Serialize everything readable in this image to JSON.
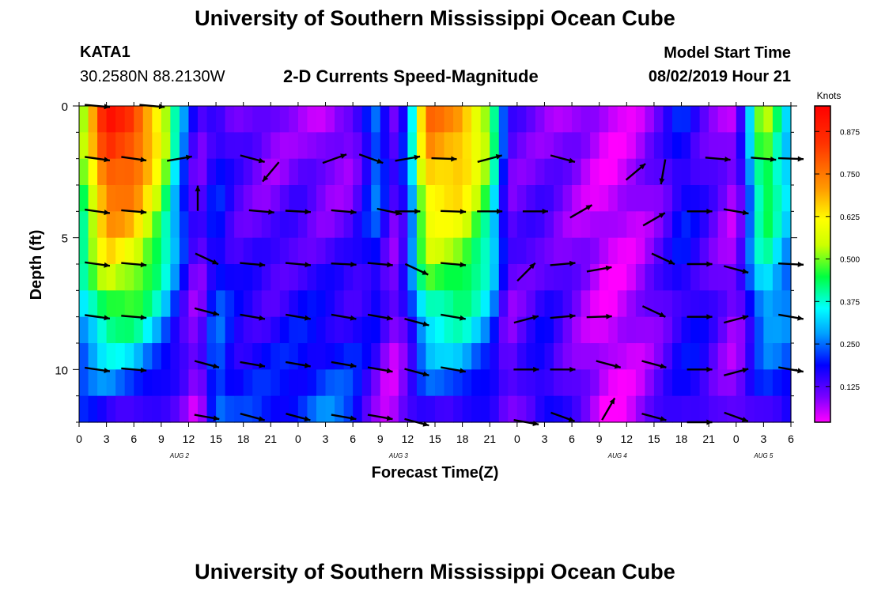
{
  "header": {
    "title": "University of Southern Mississippi Ocean Cube",
    "station_id": "KATA1",
    "coordinates": "30.2580N 88.2130W",
    "plot_title": "2-D Currents Speed-Magnitude",
    "model_start_label": "Model Start Time",
    "model_start_value": "08/02/2019 Hour 21"
  },
  "footer": {
    "title": "University of Southern Mississippi Ocean Cube"
  },
  "chart_data": {
    "type": "heatmap",
    "title": "2-D Currents Speed-Magnitude",
    "xlabel": "Forecast Time(Z)",
    "ylabel": "Depth (ft)",
    "x_tick_labels": [
      "0",
      "3",
      "6",
      "9",
      "12",
      "15",
      "18",
      "21",
      "0",
      "3",
      "6",
      "9",
      "12",
      "15",
      "18",
      "21",
      "0",
      "3",
      "6",
      "9",
      "12",
      "15",
      "18",
      "21",
      "0",
      "3",
      "6"
    ],
    "x_range_hours": [
      0,
      78
    ],
    "date_labels": [
      {
        "label": "AUG 2",
        "hour": 11
      },
      {
        "label": "AUG 3",
        "hour": 35
      },
      {
        "label": "AUG 4",
        "hour": 59
      },
      {
        "label": "AUG 5",
        "hour": 75
      }
    ],
    "y_ticks": [
      0,
      5,
      10
    ],
    "y_tick_labels": [
      "0",
      "5",
      "10"
    ],
    "ylim": [
      0,
      12
    ],
    "y_inverted": true,
    "colorbar": {
      "label": "Knots",
      "ticks": [
        0.125,
        0.25,
        0.375,
        0.5,
        0.625,
        0.75,
        0.875
      ],
      "tick_labels": [
        "0.125",
        "0.250",
        "0.375",
        "0.500",
        "0.625",
        "0.750",
        "0.875"
      ],
      "range": [
        0.02,
        0.95
      ]
    },
    "depths_ft": [
      0.5,
      1.5,
      2.5,
      3.5,
      4.5,
      5.5,
      6.5,
      7.5,
      8.5,
      9.5,
      10.5,
      11.5
    ],
    "speed_profile_by_time": [
      {
        "hour": 0,
        "surface": 0.45,
        "bottom": 0.18
      },
      {
        "hour": 3,
        "surface": 0.9,
        "bottom": 0.17
      },
      {
        "hour": 6,
        "surface": 0.85,
        "bottom": 0.16
      },
      {
        "hour": 9,
        "surface": 0.6,
        "bottom": 0.12
      },
      {
        "hour": 11,
        "surface": 0.3,
        "bottom": 0.1
      },
      {
        "hour": 13,
        "surface": 0.1,
        "bottom": 0.05
      },
      {
        "hour": 15,
        "surface": 0.18,
        "bottom": 0.28
      },
      {
        "hour": 17,
        "surface": 0.12,
        "bottom": 0.2
      },
      {
        "hour": 21,
        "surface": 0.08,
        "bottom": 0.2
      },
      {
        "hour": 24,
        "surface": 0.1,
        "bottom": 0.22
      },
      {
        "hour": 27,
        "surface": 0.06,
        "bottom": 0.25
      },
      {
        "hour": 30,
        "surface": 0.08,
        "bottom": 0.22
      },
      {
        "hour": 33,
        "surface": 0.3,
        "bottom": 0.08
      },
      {
        "hour": 34,
        "surface": 0.1,
        "bottom": 0.04
      },
      {
        "hour": 36,
        "surface": 0.22,
        "bottom": 0.1
      },
      {
        "hour": 38,
        "surface": 0.75,
        "bottom": 0.15
      },
      {
        "hour": 42,
        "surface": 0.72,
        "bottom": 0.18
      },
      {
        "hour": 45,
        "surface": 0.5,
        "bottom": 0.14
      },
      {
        "hour": 47,
        "surface": 0.12,
        "bottom": 0.08
      },
      {
        "hour": 51,
        "surface": 0.1,
        "bottom": 0.2
      },
      {
        "hour": 54,
        "surface": 0.08,
        "bottom": 0.12
      },
      {
        "hour": 58,
        "surface": 0.04,
        "bottom": 0.03
      },
      {
        "hour": 61,
        "surface": 0.06,
        "bottom": 0.06
      },
      {
        "hour": 64,
        "surface": 0.12,
        "bottom": 0.12
      },
      {
        "hour": 66,
        "surface": 0.2,
        "bottom": 0.16
      },
      {
        "hour": 68,
        "surface": 0.14,
        "bottom": 0.18
      },
      {
        "hour": 70,
        "surface": 0.1,
        "bottom": 0.12
      },
      {
        "hour": 72,
        "surface": 0.06,
        "bottom": 0.08
      },
      {
        "hour": 75,
        "surface": 0.55,
        "bottom": 0.15
      },
      {
        "hour": 78,
        "surface": 0.3,
        "bottom": 0.2
      }
    ],
    "vectors": [
      {
        "hour": 2,
        "depth": 0,
        "angle": 5
      },
      {
        "hour": 8,
        "depth": 0,
        "angle": 5
      },
      {
        "hour": 2,
        "depth": 2,
        "angle": 8
      },
      {
        "hour": 6,
        "depth": 2,
        "angle": 8
      },
      {
        "hour": 11,
        "depth": 2,
        "angle": -10
      },
      {
        "hour": 19,
        "depth": 2,
        "angle": 15
      },
      {
        "hour": 21,
        "depth": 2.5,
        "angle": 130
      },
      {
        "hour": 28,
        "depth": 2,
        "angle": -20
      },
      {
        "hour": 32,
        "depth": 2,
        "angle": 20
      },
      {
        "hour": 36,
        "depth": 2,
        "angle": -10
      },
      {
        "hour": 40,
        "depth": 2,
        "angle": 2
      },
      {
        "hour": 45,
        "depth": 2,
        "angle": -15
      },
      {
        "hour": 53,
        "depth": 2,
        "angle": 15
      },
      {
        "hour": 61,
        "depth": 2.5,
        "angle": -40
      },
      {
        "hour": 64,
        "depth": 2.5,
        "angle": 100
      },
      {
        "hour": 70,
        "depth": 2,
        "angle": 5
      },
      {
        "hour": 75,
        "depth": 2,
        "angle": 5
      },
      {
        "hour": 78,
        "depth": 2,
        "angle": 2
      },
      {
        "hour": 13,
        "depth": 3.5,
        "angle": -90
      },
      {
        "hour": 2,
        "depth": 4,
        "angle": 8
      },
      {
        "hour": 6,
        "depth": 4,
        "angle": 5
      },
      {
        "hour": 20,
        "depth": 4,
        "angle": 5
      },
      {
        "hour": 24,
        "depth": 4,
        "angle": 3
      },
      {
        "hour": 29,
        "depth": 4,
        "angle": 5
      },
      {
        "hour": 34,
        "depth": 4,
        "angle": 12
      },
      {
        "hour": 36,
        "depth": 4,
        "angle": 0
      },
      {
        "hour": 41,
        "depth": 4,
        "angle": 2
      },
      {
        "hour": 45,
        "depth": 4,
        "angle": 0
      },
      {
        "hour": 50,
        "depth": 4,
        "angle": 0
      },
      {
        "hour": 55,
        "depth": 4,
        "angle": -30
      },
      {
        "hour": 63,
        "depth": 4.3,
        "angle": -30
      },
      {
        "hour": 68,
        "depth": 4,
        "angle": 0
      },
      {
        "hour": 72,
        "depth": 4,
        "angle": 10
      },
      {
        "hour": 2,
        "depth": 6,
        "angle": 8
      },
      {
        "hour": 6,
        "depth": 6,
        "angle": 5
      },
      {
        "hour": 14,
        "depth": 5.8,
        "angle": 25
      },
      {
        "hour": 19,
        "depth": 6,
        "angle": 5
      },
      {
        "hour": 24,
        "depth": 6,
        "angle": 5
      },
      {
        "hour": 29,
        "depth": 6,
        "angle": 3
      },
      {
        "hour": 33,
        "depth": 6,
        "angle": 5
      },
      {
        "hour": 37,
        "depth": 6.2,
        "angle": 25
      },
      {
        "hour": 41,
        "depth": 6,
        "angle": 5
      },
      {
        "hour": 49,
        "depth": 6.3,
        "angle": -45
      },
      {
        "hour": 53,
        "depth": 6,
        "angle": -5
      },
      {
        "hour": 57,
        "depth": 6.2,
        "angle": -10
      },
      {
        "hour": 64,
        "depth": 5.8,
        "angle": 25
      },
      {
        "hour": 68,
        "depth": 6,
        "angle": 0
      },
      {
        "hour": 72,
        "depth": 6.2,
        "angle": 15
      },
      {
        "hour": 78,
        "depth": 6,
        "angle": 3
      },
      {
        "hour": 2,
        "depth": 8,
        "angle": 8
      },
      {
        "hour": 6,
        "depth": 8,
        "angle": 5
      },
      {
        "hour": 14,
        "depth": 7.8,
        "angle": 15
      },
      {
        "hour": 19,
        "depth": 8,
        "angle": 10
      },
      {
        "hour": 24,
        "depth": 8,
        "angle": 10
      },
      {
        "hour": 29,
        "depth": 8,
        "angle": 10
      },
      {
        "hour": 33,
        "depth": 8,
        "angle": 10
      },
      {
        "hour": 37,
        "depth": 8.2,
        "angle": 15
      },
      {
        "hour": 41,
        "depth": 8,
        "angle": 10
      },
      {
        "hour": 49,
        "depth": 8.1,
        "angle": -15
      },
      {
        "hour": 53,
        "depth": 8,
        "angle": -5
      },
      {
        "hour": 57,
        "depth": 8,
        "angle": -2
      },
      {
        "hour": 63,
        "depth": 7.8,
        "angle": 25
      },
      {
        "hour": 68,
        "depth": 8,
        "angle": 0
      },
      {
        "hour": 72,
        "depth": 8.1,
        "angle": -15
      },
      {
        "hour": 78,
        "depth": 8,
        "angle": 10
      },
      {
        "hour": 2,
        "depth": 10,
        "angle": 8
      },
      {
        "hour": 6,
        "depth": 10,
        "angle": 5
      },
      {
        "hour": 14,
        "depth": 9.8,
        "angle": 15
      },
      {
        "hour": 19,
        "depth": 9.8,
        "angle": 10
      },
      {
        "hour": 24,
        "depth": 9.8,
        "angle": 10
      },
      {
        "hour": 29,
        "depth": 9.8,
        "angle": 10
      },
      {
        "hour": 33,
        "depth": 10,
        "angle": 10
      },
      {
        "hour": 37,
        "depth": 10.1,
        "angle": 15
      },
      {
        "hour": 41,
        "depth": 10,
        "angle": 10
      },
      {
        "hour": 49,
        "depth": 10,
        "angle": 0
      },
      {
        "hour": 53,
        "depth": 10,
        "angle": 0
      },
      {
        "hour": 58,
        "depth": 9.8,
        "angle": 15
      },
      {
        "hour": 63,
        "depth": 9.8,
        "angle": 15
      },
      {
        "hour": 68,
        "depth": 10,
        "angle": 0
      },
      {
        "hour": 72,
        "depth": 10.1,
        "angle": -15
      },
      {
        "hour": 78,
        "depth": 10,
        "angle": 10
      },
      {
        "hour": 14,
        "depth": 11.8,
        "angle": 10
      },
      {
        "hour": 19,
        "depth": 11.8,
        "angle": 15
      },
      {
        "hour": 24,
        "depth": 11.8,
        "angle": 15
      },
      {
        "hour": 29,
        "depth": 11.8,
        "angle": 10
      },
      {
        "hour": 33,
        "depth": 11.8,
        "angle": 10
      },
      {
        "hour": 37,
        "depth": 12,
        "angle": 15
      },
      {
        "hour": 49,
        "depth": 12,
        "angle": 10
      },
      {
        "hour": 53,
        "depth": 11.8,
        "angle": 20
      },
      {
        "hour": 58,
        "depth": 11.5,
        "angle": -60
      },
      {
        "hour": 63,
        "depth": 11.8,
        "angle": 15
      },
      {
        "hour": 68,
        "depth": 12,
        "angle": 0
      },
      {
        "hour": 72,
        "depth": 11.8,
        "angle": 20
      }
    ]
  }
}
